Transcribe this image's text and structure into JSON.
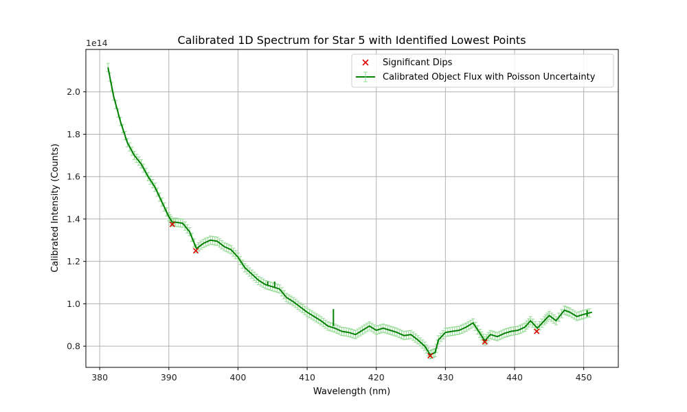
{
  "chart_data": {
    "type": "line",
    "title": "Calibrated 1D Spectrum for Star 5 with Identified Lowest Points",
    "xlabel": "Wavelength (nm)",
    "ylabel": "Calibrated Intensity (Counts)",
    "y_offset_label": "1e14",
    "xlim": [
      378,
      455
    ],
    "ylim": [
      0.7,
      2.2
    ],
    "x_ticks": [
      380,
      390,
      400,
      410,
      420,
      430,
      440,
      450
    ],
    "x_tick_labels": [
      "380",
      "390",
      "400",
      "410",
      "420",
      "430",
      "440",
      "450"
    ],
    "y_ticks": [
      0.8,
      1.0,
      1.2,
      1.4,
      1.6,
      1.8,
      2.0
    ],
    "y_tick_labels": [
      "0.8",
      "1.0",
      "1.2",
      "1.4",
      "1.6",
      "1.8",
      "2.0"
    ],
    "grid": true,
    "legend_position": "top-right",
    "series": [
      {
        "name": "Calibrated Object Flux with Poisson Uncertainty",
        "kind": "line",
        "color": "#008000",
        "errorbar_color": "#90d890",
        "x": [
          381.2,
          382,
          383,
          384,
          385,
          386,
          387,
          388,
          389,
          390,
          390.5,
          391,
          392,
          393,
          394,
          395,
          396,
          397,
          398,
          399,
          400,
          401,
          402,
          403,
          404,
          405,
          406,
          407,
          408,
          409,
          410,
          411,
          412,
          413,
          414,
          415,
          416,
          417,
          418,
          419,
          420,
          421,
          422,
          423,
          424,
          425,
          426,
          427,
          427.8,
          428.5,
          429,
          430,
          431,
          432,
          433,
          434,
          435,
          435.7,
          436.5,
          437.5,
          438.5,
          439.5,
          440.5,
          441.5,
          442.3,
          443.3,
          444.3,
          445,
          446,
          447.2,
          448,
          449,
          450,
          451.2
        ],
        "y": [
          2.115,
          1.98,
          1.86,
          1.76,
          1.7,
          1.66,
          1.6,
          1.55,
          1.48,
          1.41,
          1.385,
          1.385,
          1.38,
          1.34,
          1.26,
          1.285,
          1.3,
          1.295,
          1.27,
          1.255,
          1.22,
          1.17,
          1.14,
          1.11,
          1.09,
          1.08,
          1.07,
          1.03,
          1.01,
          0.985,
          0.96,
          0.94,
          0.92,
          0.895,
          0.885,
          0.87,
          0.865,
          0.855,
          0.875,
          0.895,
          0.875,
          0.885,
          0.875,
          0.865,
          0.85,
          0.855,
          0.83,
          0.8,
          0.76,
          0.77,
          0.83,
          0.865,
          0.87,
          0.875,
          0.89,
          0.91,
          0.86,
          0.825,
          0.855,
          0.845,
          0.86,
          0.87,
          0.875,
          0.89,
          0.92,
          0.885,
          0.92,
          0.945,
          0.92,
          0.97,
          0.96,
          0.94,
          0.95,
          0.96
        ],
        "spikes": [
          {
            "x": 404.3,
            "low": 1.085,
            "high": 1.105
          },
          {
            "x": 405.3,
            "low": 1.075,
            "high": 1.105
          },
          {
            "x": 413.8,
            "low": 0.895,
            "high": 0.975
          },
          {
            "x": 450.5,
            "low": 0.94,
            "high": 0.97
          }
        ]
      },
      {
        "name": "Significant Dips",
        "kind": "scatter",
        "marker": "x",
        "color": "#e00000",
        "x": [
          390.5,
          393.9,
          427.8,
          435.7,
          443.2
        ],
        "y": [
          1.375,
          1.25,
          0.755,
          0.82,
          0.87
        ]
      }
    ]
  }
}
